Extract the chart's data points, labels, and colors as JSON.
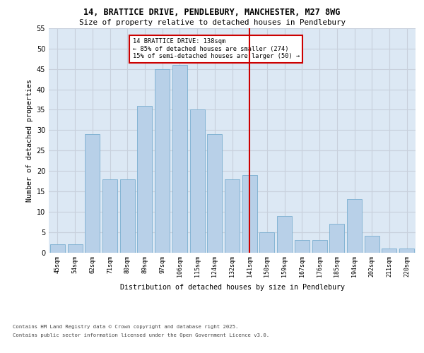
{
  "title_line1": "14, BRATTICE DRIVE, PENDLEBURY, MANCHESTER, M27 8WG",
  "title_line2": "Size of property relative to detached houses in Pendlebury",
  "xlabel": "Distribution of detached houses by size in Pendlebury",
  "ylabel": "Number of detached properties",
  "categories": [
    "45sqm",
    "54sqm",
    "62sqm",
    "71sqm",
    "80sqm",
    "89sqm",
    "97sqm",
    "106sqm",
    "115sqm",
    "124sqm",
    "132sqm",
    "141sqm",
    "150sqm",
    "159sqm",
    "167sqm",
    "176sqm",
    "185sqm",
    "194sqm",
    "202sqm",
    "211sqm",
    "220sqm"
  ],
  "values": [
    2,
    2,
    29,
    18,
    18,
    36,
    45,
    46,
    35,
    29,
    18,
    19,
    5,
    9,
    3,
    3,
    7,
    13,
    4,
    1,
    1
  ],
  "bar_color": "#b8d0e8",
  "bar_edge_color": "#7aaed0",
  "grid_color": "#c8d0dc",
  "background_color": "#dce8f4",
  "red_line_index": 11,
  "red_line_color": "#cc0000",
  "annotation_text": "14 BRATTICE DRIVE: 138sqm\n← 85% of detached houses are smaller (274)\n15% of semi-detached houses are larger (50) →",
  "annotation_box_color": "#cc0000",
  "ylim": [
    0,
    55
  ],
  "yticks": [
    0,
    5,
    10,
    15,
    20,
    25,
    30,
    35,
    40,
    45,
    50,
    55
  ],
  "footnote1": "Contains HM Land Registry data © Crown copyright and database right 2025.",
  "footnote2": "Contains public sector information licensed under the Open Government Licence v3.0."
}
